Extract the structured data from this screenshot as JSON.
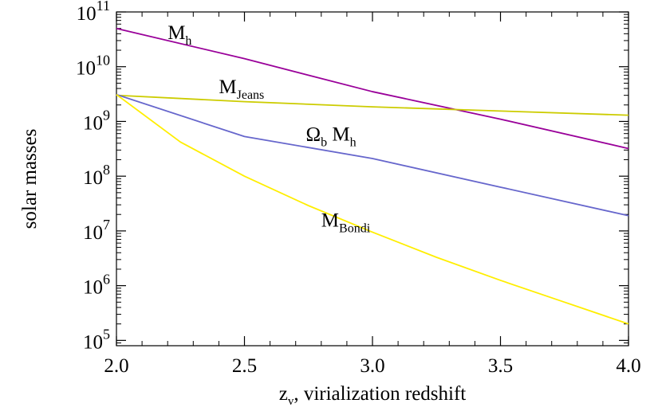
{
  "chart_data": {
    "type": "line",
    "title": "",
    "xlabel": {
      "main": "z",
      "sub": "v",
      "rest": ", virialization redshift"
    },
    "ylabel": "solar masses",
    "xlim": [
      2.0,
      4.0
    ],
    "ylim": [
      80000,
      100000000000
    ],
    "yscale": "log",
    "grid": false,
    "legend": "none",
    "x_ticks": [
      2.0,
      2.5,
      3.0,
      3.5,
      4.0
    ],
    "x_tick_labels": [
      "2.0",
      "2.5",
      "3.0",
      "3.5",
      "4.0"
    ],
    "y_ticks": [
      {
        "value": 100000,
        "base": "10",
        "exp": "5"
      },
      {
        "value": 1000000,
        "base": "10",
        "exp": "6"
      },
      {
        "value": 10000000,
        "base": "10",
        "exp": "7"
      },
      {
        "value": 100000000,
        "base": "10",
        "exp": "8"
      },
      {
        "value": 1000000000,
        "base": "10",
        "exp": "9"
      },
      {
        "value": 10000000000,
        "base": "10",
        "exp": "10"
      },
      {
        "value": 100000000000,
        "base": "10",
        "exp": "11"
      }
    ],
    "series": [
      {
        "id": "mh",
        "color": "#990099",
        "label": {
          "main": "M",
          "sub": "h",
          "at": [
            2.2,
            32000000000.0
          ]
        },
        "x": [
          2.0,
          2.5,
          3.0,
          3.5,
          4.0
        ],
        "y": [
          50000000000.0,
          14000000000.0,
          3500000000.0,
          1100000000.0,
          320000000.0
        ]
      },
      {
        "id": "mjeans",
        "color": "#cccc00",
        "label": {
          "main": "M",
          "sub": "Jeans",
          "at": [
            2.4,
            3300000000.0
          ]
        },
        "x": [
          2.0,
          2.5,
          3.0,
          3.5,
          4.0
        ],
        "y": [
          3000000000.0,
          2300000000.0,
          1850000000.0,
          1550000000.0,
          1300000000.0
        ]
      },
      {
        "id": "omega_mh",
        "color": "#6666cc",
        "label": {
          "main": "Ω",
          "sub": "b",
          "tail": " M",
          "sub2": "h",
          "at": [
            2.74,
            450000000.0
          ]
        },
        "x": [
          2.0,
          2.5,
          3.0,
          3.5,
          4.0
        ],
        "y": [
          3100000000.0,
          530000000.0,
          210000000.0,
          63000000.0,
          19000000.0
        ]
      },
      {
        "id": "mbondi",
        "color": "#ffee00",
        "label": {
          "main": "M",
          "sub": "Bondi",
          "at": [
            2.8,
            12000000.0
          ]
        },
        "x": [
          2.0,
          2.25,
          2.5,
          2.75,
          3.0,
          3.25,
          3.5,
          3.75,
          4.0
        ],
        "y": [
          3100000000.0,
          420000000.0,
          100000000.0,
          29000000.0,
          9500000.0,
          3300000.0,
          1250000.0,
          500000.0,
          200000.0
        ]
      }
    ]
  }
}
